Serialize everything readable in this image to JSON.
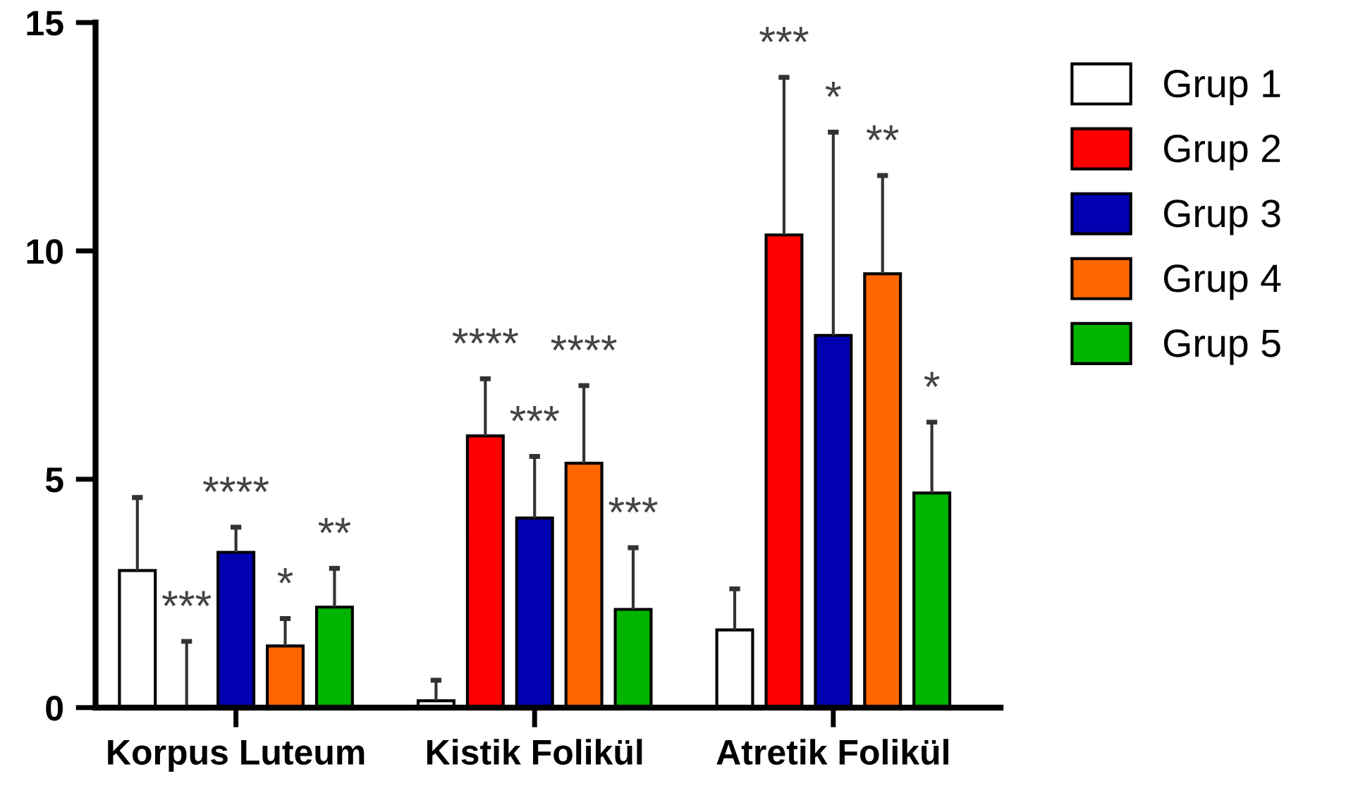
{
  "chart_data": {
    "type": "bar",
    "categories": [
      "Korpus Luteum",
      "Kistik Folikül",
      "Atretik Folikül"
    ],
    "series": [
      {
        "name": "Grup 1",
        "color": "#ffffff",
        "values": [
          3.0,
          0.15,
          1.7
        ],
        "errors": [
          [
            3.0,
            4.6
          ],
          [
            0.15,
            0.6
          ],
          [
            1.7,
            2.6
          ]
        ]
      },
      {
        "name": "Grup 2",
        "color": "#ff0000",
        "values": [
          0,
          5.95,
          10.35
        ],
        "errors": [
          [
            0,
            1.45
          ],
          [
            5.95,
            7.2
          ],
          [
            10.35,
            13.8
          ]
        ]
      },
      {
        "name": "Grup 3",
        "color": "#0000b0",
        "values": [
          3.4,
          4.15,
          8.15
        ],
        "errors": [
          [
            3.4,
            3.95
          ],
          [
            4.15,
            5.5
          ],
          [
            8.15,
            12.6
          ]
        ]
      },
      {
        "name": "Grup 4",
        "color": "#ff6600",
        "values": [
          1.35,
          5.35,
          9.5
        ],
        "errors": [
          [
            1.35,
            1.95
          ],
          [
            5.35,
            7.05
          ],
          [
            9.5,
            11.65
          ]
        ]
      },
      {
        "name": "Grup 5",
        "color": "#00b400",
        "values": [
          2.2,
          2.15,
          4.7
        ],
        "errors": [
          [
            2.2,
            3.05
          ],
          [
            2.15,
            3.5
          ],
          [
            4.7,
            6.25
          ]
        ]
      }
    ],
    "annotations": [
      "***",
      "****",
      "*",
      "**",
      "****",
      "***",
      "****",
      "***",
      "***",
      "*",
      "**",
      "*"
    ],
    "ylim": [
      0,
      15
    ],
    "yticks": [
      0,
      5,
      10,
      15
    ],
    "grid": false,
    "legend": "right"
  }
}
